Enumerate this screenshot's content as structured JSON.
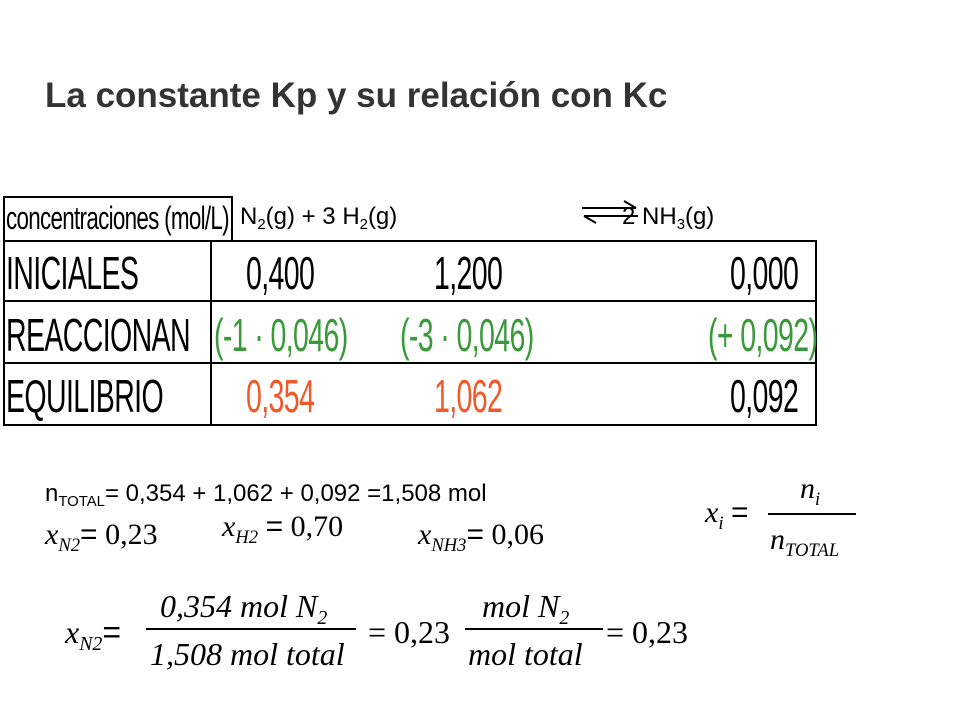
{
  "title": "La constante Kp y su relación con Kc",
  "reaction": {
    "left": [
      "N",
      "2",
      "(g) + 3 H",
      "2",
      "(g)"
    ],
    "right": [
      "2 NH",
      "3",
      "(g)"
    ]
  },
  "table": {
    "header": "concentraciones (mol/L)",
    "rows": [
      [
        "INICIALES",
        "0,400",
        "1,200",
        "0,000"
      ],
      [
        "REACCIONAN",
        "(-1 · 0,046)",
        "(-3 · 0,046)",
        "(+ 0,092)"
      ],
      [
        "EQUILIBRIO",
        "0,354",
        "1,062",
        "0,092"
      ]
    ]
  },
  "total": {
    "symbol": "n",
    "subscript": "TOTAL",
    "expression": "= 0,354 + 1,062 + 0,092 =1,508 mol"
  },
  "fraction_definition": {
    "symbol": "x",
    "subscript": "i",
    "equals": "=",
    "numerator": "n",
    "numerator_subscript": "i",
    "denominator": "n",
    "denominator_subscript": "TOTAL"
  },
  "mole_fractions": [
    {
      "symbol": "x",
      "subscript": "N2",
      "equals": "=",
      "value": "0,23"
    },
    {
      "symbol": "x",
      "subscript": "H2",
      "equals": "=",
      "value": "0,70"
    },
    {
      "symbol": "x",
      "subscript": "NH3",
      "equals": "=",
      "value": "0,06"
    }
  ],
  "calculation": {
    "symbol": "x",
    "subscript": "N2",
    "equals_1": "=",
    "fraction_1": {
      "numerator": "0,354 mol N",
      "numerator_subscript": "2",
      "denominator": "1,508 mol total"
    },
    "result_1": "= 0,23",
    "fraction_2": {
      "numerator": "mol N",
      "numerator_subscript": "2",
      "denominator": "mol total"
    },
    "result_2": "= 0,23"
  }
}
